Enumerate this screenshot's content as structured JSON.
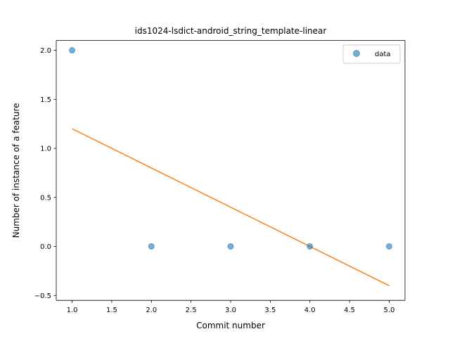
{
  "chart_data": {
    "type": "scatter",
    "title": "ids1024-lsdict-android_string_template-linear",
    "xlabel": "Commit number",
    "ylabel": "Number of instance of a feature",
    "xlim": [
      0.8,
      5.2
    ],
    "ylim": [
      -0.55,
      2.1
    ],
    "xticks": [
      1.0,
      1.5,
      2.0,
      2.5,
      3.0,
      3.5,
      4.0,
      4.5,
      5.0
    ],
    "xtick_labels": [
      "1.0",
      "1.5",
      "2.0",
      "2.5",
      "3.0",
      "3.5",
      "4.0",
      "4.5",
      "5.0"
    ],
    "yticks": [
      -0.5,
      0.0,
      0.5,
      1.0,
      1.5,
      2.0
    ],
    "ytick_labels": [
      "−0.5",
      "0.0",
      "0.5",
      "1.0",
      "1.5",
      "2.0"
    ],
    "grid": false,
    "legend_position": "top-right",
    "series": [
      {
        "name": "data",
        "kind": "scatter",
        "color": "#1f77b4",
        "x": [
          1,
          2,
          3,
          4,
          5
        ],
        "y": [
          2,
          0,
          0,
          0,
          0
        ]
      },
      {
        "kind": "line",
        "color": "#ff7f0e",
        "x": [
          1,
          5
        ],
        "y": [
          1.2,
          -0.4
        ]
      }
    ]
  }
}
